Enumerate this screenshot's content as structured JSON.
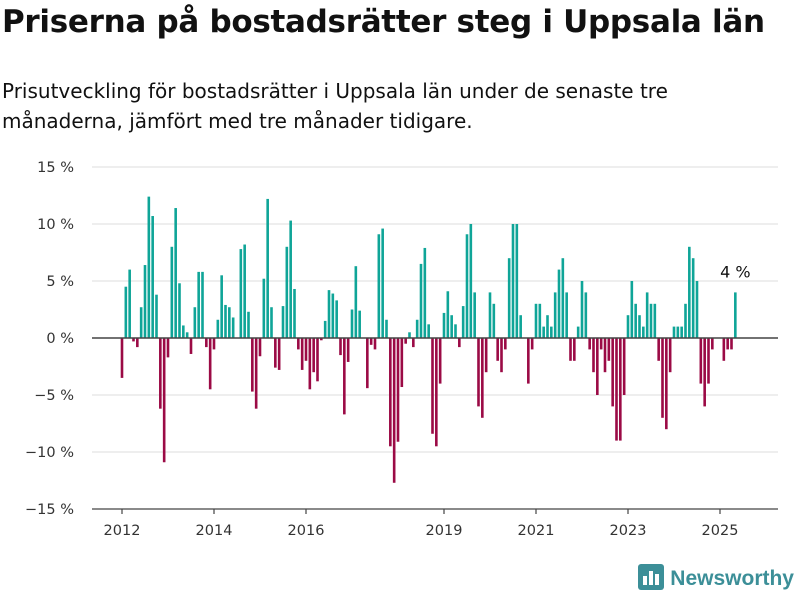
{
  "title": "Priserna på bostadsrätter steg i Uppsala län",
  "subtitle": "Prisutveckling för bostadsrätter i Uppsala län under de senaste tre månaderna, jämfört med tre månader tidigare.",
  "brand": "Newsworthy",
  "colors": {
    "positive": "#0fa598",
    "negative": "#9b0a45",
    "grid": "#dddddd",
    "axis": "#444444",
    "brand": "#3c8f98"
  },
  "chart_data": {
    "type": "bar",
    "title": "Priserna på bostadsrätter steg i Uppsala län",
    "subtitle": "Prisutveckling för bostadsrätter i Uppsala län under de senaste tre månaderna, jämfört med tre månader tidigare.",
    "xlabel": "",
    "ylabel": "",
    "unit": "%",
    "ylim": [
      -15,
      15
    ],
    "y_ticks": [
      15,
      10,
      5,
      0,
      -5,
      -10,
      -15
    ],
    "y_tick_labels": [
      "15 %",
      "10 %",
      "5 %",
      "0 %",
      "−5 %",
      "−10 %",
      "−15 %"
    ],
    "x_ticks": [
      2012,
      2014,
      2016,
      2019,
      2021,
      2023,
      2025
    ],
    "x_tick_labels": [
      "2012",
      "2014",
      "2016",
      "2019",
      "2021",
      "2023",
      "2025"
    ],
    "x_start": 2012.0,
    "x_step_years": 0.0833333,
    "grid": "horizontal",
    "annotation": {
      "text": "4 %",
      "target": "last"
    },
    "values": [
      -3.5,
      4.5,
      6.0,
      -0.3,
      -0.8,
      2.7,
      6.4,
      12.4,
      10.7,
      3.8,
      -6.2,
      -10.9,
      -1.7,
      8.0,
      11.4,
      4.8,
      1.1,
      0.5,
      -1.4,
      2.7,
      5.8,
      5.8,
      -0.8,
      -4.5,
      -1.0,
      1.6,
      5.5,
      2.9,
      2.7,
      1.8,
      0.0,
      7.8,
      8.2,
      2.3,
      -4.7,
      -6.2,
      -1.6,
      5.2,
      12.2,
      2.7,
      -2.6,
      -2.8,
      2.8,
      8.0,
      10.3,
      4.3,
      -1.0,
      -2.8,
      -2.0,
      -4.5,
      -3.0,
      -3.8,
      -0.2,
      1.5,
      4.2,
      3.9,
      3.3,
      -1.5,
      -6.7,
      -2.1,
      2.5,
      6.3,
      2.4,
      0.0,
      -4.4,
      -0.6,
      -1.0,
      9.1,
      9.6,
      1.6,
      -9.5,
      -12.7,
      -9.1,
      -4.3,
      -0.5,
      0.5,
      -0.8,
      1.6,
      6.5,
      7.9,
      1.2,
      -8.4,
      -9.5,
      -4.0,
      2.2,
      4.1,
      2.0,
      1.2,
      -0.8,
      2.8,
      9.1,
      10.0,
      4.0,
      -6.0,
      -7.0,
      -3.0,
      4.0,
      3.0,
      -2.0,
      -3.0,
      -1.0,
      7.0,
      10.0,
      10.0,
      2.0,
      0.0,
      -4.0,
      -1.0,
      3.0,
      3.0,
      1.0,
      2.0,
      1.0,
      4.0,
      6.0,
      7.0,
      4.0,
      -2.0,
      -2.0,
      1.0,
      5.0,
      4.0,
      -1.0,
      -3.0,
      -5.0,
      -1.0,
      -3.0,
      -2.0,
      -6.0,
      -9.0,
      -9.0,
      -5.0,
      2.0,
      5.0,
      3.0,
      2.0,
      1.0,
      4.0,
      3.0,
      3.0,
      -2.0,
      -7.0,
      -8.0,
      -3.0,
      1.0,
      1.0,
      1.0,
      3.0,
      8.0,
      7.0,
      5.0,
      -4.0,
      -6.0,
      -4.0,
      -1.0,
      0.0,
      0.0,
      -2.0,
      -1.0,
      -1.0,
      4.0
    ]
  }
}
